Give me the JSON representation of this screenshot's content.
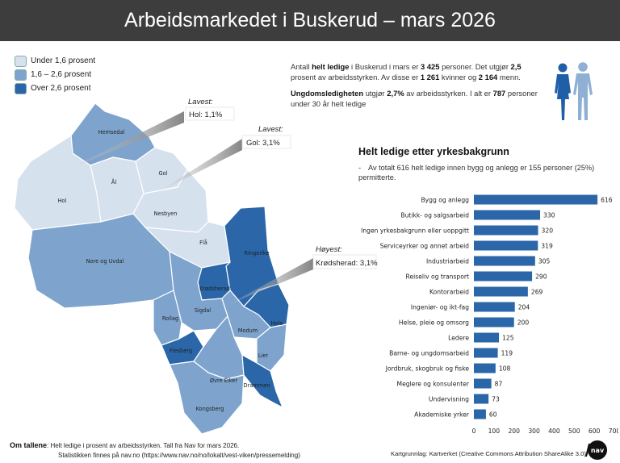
{
  "header": {
    "title": "Arbeidsmarkedet i Buskerud – mars 2026"
  },
  "legend": {
    "items": [
      {
        "label": "Under 1,6 prosent",
        "color": "#d6e1ee"
      },
      {
        "label": "1,6 – 2,6 prosent",
        "color": "#7ea4cd"
      },
      {
        "label": "Over 2,6 prosent",
        "color": "#2a66a8"
      }
    ]
  },
  "map": {
    "municipalities": {
      "hemsedal": "Hemsedal",
      "al": "Ål",
      "gol": "Gol",
      "hol": "Hol",
      "nesbyen": "Nesbyen",
      "fla": "Flå",
      "nore": "Nore og Uvdal",
      "ringerike": "Ringerike",
      "krodsherad": "Krødsherad",
      "sigdal": "Sigdal",
      "rollag": "Rollag",
      "modum": "Modum",
      "hole": "Hole",
      "flesberg": "Flesberg",
      "lier": "Lier",
      "ovre_eiker": "Øvre Eiker",
      "drammen": "Drammen",
      "kongsberg": "Kongsberg"
    },
    "callouts": [
      {
        "title": "Lavest:",
        "text": "Hol: 1,1%"
      },
      {
        "title": "Lavest:",
        "text": "Gol: 3,1%"
      },
      {
        "title": "Høyest:",
        "text": "Krødsherad: 3,1%"
      }
    ]
  },
  "stats": {
    "p1": {
      "t1": "Antall ",
      "b1": "helt ledige",
      "t2": " i Buskerud i mars er ",
      "b2": "3 425",
      "t3": " personer. Det utgjør ",
      "b3": "2,5",
      "t4": " prosent av arbeidsstyrken. Av disse er ",
      "b4": "1 261",
      "t5": " kvinner og ",
      "b5": "2 164",
      "t6": " menn."
    },
    "p2": {
      "b1": "Ungdomsledigheten",
      "t1": " utgjør ",
      "b2": "2,7%",
      "t2": " av arbeidsstyrken. I alt er ",
      "b3": "787",
      "t3": " personer under 30 år helt ledige"
    }
  },
  "chart_title": "Helt ledige etter yrkesbakgrunn",
  "chart_note": "Av totalt 616 helt ledige innen bygg og anlegg er 155 personer (25%) permitterte.",
  "chart_data": {
    "type": "bar",
    "orientation": "horizontal",
    "title": "Helt ledige etter yrkesbakgrunn",
    "categories": [
      "Bygg og anlegg",
      "Butikk- og salgsarbeid",
      "Ingen yrkesbakgrunn eller uoppgitt",
      "Serviceyrker og annet arbeid",
      "Industriarbeid",
      "Reiseliv og transport",
      "Kontorarbeid",
      "Ingeniør- og ikt-fag",
      "Helse, pleie og omsorg",
      "Ledere",
      "Barne- og ungdomsarbeid",
      "Jordbruk, skogbruk og fiske",
      "Meglere og konsulenter",
      "Undervisning",
      "Akademiske yrker"
    ],
    "values": [
      616,
      330,
      320,
      319,
      305,
      290,
      269,
      204,
      200,
      125,
      119,
      108,
      87,
      73,
      60
    ],
    "xlim": [
      0,
      700
    ],
    "ticks": [
      0,
      100,
      200,
      300,
      400,
      500,
      600,
      700
    ],
    "bar_color": "#2a66a8",
    "grid": false
  },
  "footer": {
    "label": "Om tallene",
    "line1": ": Helt ledige i prosent av arbeidsstyrken. Tall fra Nav for mars 2026.",
    "line2": "Statistikken finnes på nav.no (https://www.nav.no/no/lokalt/vest-viken/pressemelding)",
    "credit": "Kartgrunnlag: Kartverket (Creative Commons Attribution ShareAlike 3.0)"
  },
  "logo_text": "nav"
}
